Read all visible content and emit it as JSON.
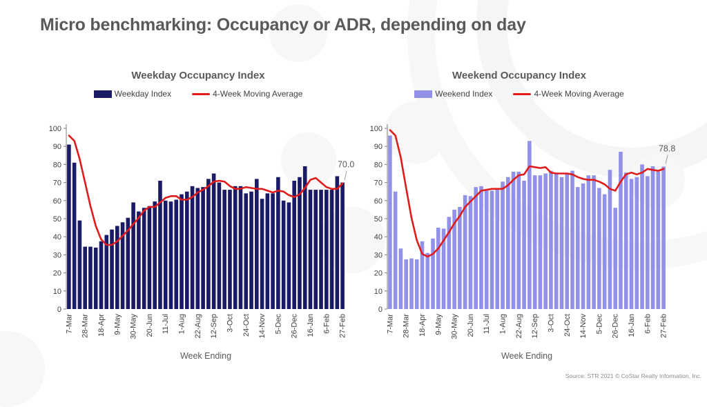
{
  "page": {
    "title": "Micro benchmarking: Occupancy or ADR, depending on day",
    "source": "Source: STR 2021 © CoStar Realty Information, Inc."
  },
  "colors": {
    "weekday_bar": "#1A1A66",
    "weekend_bar": "#9191E8",
    "moving_average_line": "#E01B1B",
    "title_gray": "#595959"
  },
  "chart_data": [
    {
      "type": "bar",
      "title": "Weekday Occupancy Index",
      "legend": [
        {
          "label": "Weekday Index",
          "swatch": "bar",
          "color": "#1A1A66"
        },
        {
          "label": "4-Week Moving Average",
          "swatch": "line",
          "color": "#E01B1B"
        }
      ],
      "xlabel": "Week Ending",
      "ylim": [
        0,
        100
      ],
      "ytick_step": 10,
      "grid": false,
      "x_tick_labels": [
        "7-Mar",
        "28-Mar",
        "18-Apr",
        "9-May",
        "30-May",
        "20-Jun",
        "11-Jul",
        "1-Aug",
        "22-Aug",
        "12-Sep",
        "3-Oct",
        "24-Oct",
        "14-Nov",
        "5-Dec",
        "26-Dec",
        "16-Jan",
        "6-Feb",
        "27-Feb"
      ],
      "x_tick_every": 3,
      "bar_color": "#1A1A66",
      "line_color": "#E01B1B",
      "last_label": "70.0",
      "bars": [
        91,
        81,
        49,
        34.5,
        34.5,
        34,
        37.5,
        41,
        44,
        46,
        48,
        50.5,
        59,
        54,
        56,
        57,
        59.5,
        71,
        60,
        59.5,
        60.5,
        63.5,
        65,
        68,
        67,
        67.5,
        72,
        75,
        70,
        66,
        66,
        68,
        68,
        64,
        65,
        72,
        61,
        64,
        64,
        73,
        60,
        59,
        71,
        73,
        79,
        66,
        66,
        66,
        66,
        66,
        73.5,
        70
      ],
      "moving_average": [
        96,
        93,
        83,
        70,
        57,
        46,
        38.5,
        35.5,
        35.5,
        37.5,
        40.5,
        43.5,
        47,
        50.5,
        54.5,
        56.5,
        56.5,
        59,
        61.5,
        62.5,
        62.5,
        60.5,
        60.5,
        62,
        64.5,
        66,
        68,
        70.5,
        71,
        70.5,
        68,
        66.5,
        66.5,
        67.5,
        67,
        66.5,
        66.5,
        65.5,
        64.5,
        65.5,
        65,
        63,
        62,
        63.5,
        67,
        71.5,
        72.5,
        70,
        67.5,
        66.5,
        66.5,
        69.5
      ]
    },
    {
      "type": "bar",
      "title": "Weekend Occupancy Index",
      "legend": [
        {
          "label": "Weekend Index",
          "swatch": "bar",
          "color": "#9191E8"
        },
        {
          "label": "4-Week Moving Average",
          "swatch": "line",
          "color": "#E01B1B"
        }
      ],
      "xlabel": "Week Ending",
      "ylim": [
        0,
        100
      ],
      "ytick_step": 10,
      "grid": false,
      "x_tick_labels": [
        "7-Mar",
        "28-Mar",
        "18-Apr",
        "9-May",
        "30-May",
        "20-Jun",
        "11-Jul",
        "1-Aug",
        "22-Aug",
        "12-Sep",
        "3-Oct",
        "24-Oct",
        "14-Nov",
        "5-Dec",
        "26-Dec",
        "16-Jan",
        "6-Feb",
        "27-Feb"
      ],
      "x_tick_every": 3,
      "bar_color": "#9191E8",
      "line_color": "#E01B1B",
      "last_label": "78.8",
      "bars": [
        96,
        65,
        33.5,
        27.5,
        28,
        27.5,
        37.5,
        31,
        39,
        45,
        44.5,
        51,
        55,
        56.5,
        63,
        62.5,
        67.5,
        68,
        66,
        65.5,
        66,
        70.5,
        73,
        76,
        76,
        71,
        93,
        74,
        74,
        75,
        76.5,
        75,
        73,
        75,
        76.5,
        67.5,
        69.5,
        74,
        74,
        67,
        63.5,
        77,
        56,
        87,
        75.5,
        72,
        73,
        80,
        73.5,
        79,
        76,
        78.8
      ],
      "moving_average": [
        99,
        96,
        84,
        67,
        50.5,
        38,
        30.5,
        29,
        30.5,
        33.5,
        38,
        42.5,
        47.5,
        51.5,
        56.5,
        59.5,
        62.5,
        65.5,
        66,
        66.5,
        66.5,
        66.5,
        68.5,
        71.5,
        74,
        74.5,
        79,
        78.5,
        78,
        78.5,
        75.5,
        75,
        75,
        75,
        74.5,
        73,
        72,
        71.5,
        71.5,
        70.5,
        69,
        66.5,
        65.5,
        70.5,
        74.5,
        75.5,
        74.5,
        75.5,
        77.5,
        77,
        76.5,
        77.5
      ]
    }
  ]
}
